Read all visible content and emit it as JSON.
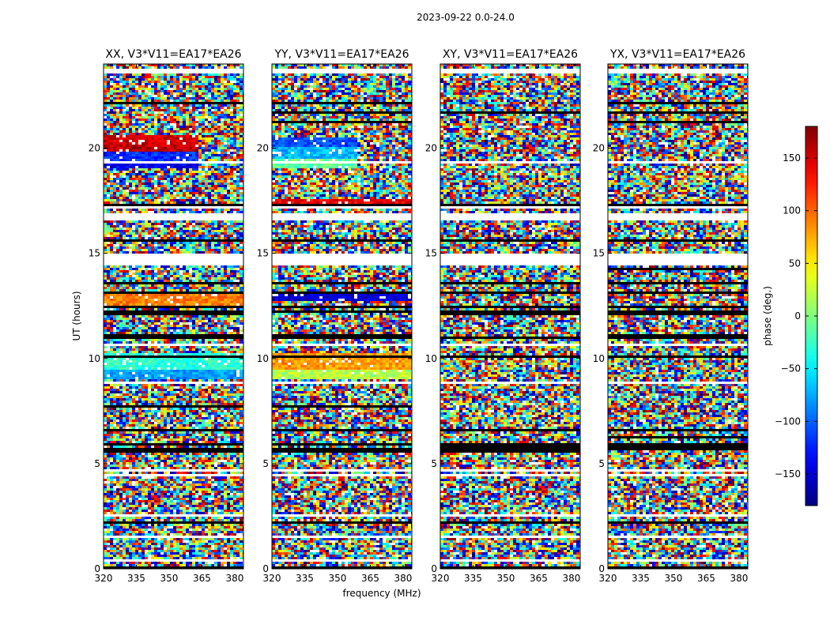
{
  "chart_data": {
    "type": "heatmap",
    "suptitle": "2023-09-22 0.0-24.0",
    "xlabel": "frequency (MHz)",
    "ylabel": "UT (hours)",
    "xlim": [
      320,
      384
    ],
    "ylim": [
      0,
      24
    ],
    "xticks": [
      320,
      335,
      350,
      365,
      380
    ],
    "yticks": [
      0,
      5,
      10,
      15,
      20
    ],
    "colorbar": {
      "label": "phase (deg.)",
      "range": [
        -180,
        180
      ],
      "ticks": [
        -150,
        -100,
        -50,
        0,
        50,
        100,
        150
      ],
      "tick_labels": [
        "−150",
        "−100",
        "−50",
        "0",
        "50",
        "100",
        "150"
      ],
      "colormap": "jet",
      "colors": [
        "#00007f",
        "#0000ff",
        "#007fff",
        "#00ffff",
        "#7fff7f",
        "#ffff00",
        "#ff7f00",
        "#ff0000",
        "#7f0000"
      ]
    },
    "panels": [
      {
        "title": "XX, V3*V11=EA17*EA26",
        "coherent_bands": [
          {
            "t0": 19.0,
            "t1": 19.4,
            "f1": 362,
            "phase": -140
          },
          {
            "t0": 19.4,
            "t1": 19.8,
            "f1": 362,
            "phase": -120
          },
          {
            "t0": 19.8,
            "t1": 20.2,
            "f1": 362,
            "phase": 160
          },
          {
            "t0": 20.2,
            "t1": 20.6,
            "f1": 362,
            "phase": 150
          },
          {
            "t0": 12.5,
            "t1": 13.1,
            "f1": 384,
            "phase": 90
          },
          {
            "t0": 9.0,
            "t1": 9.5,
            "f1": 384,
            "phase": -80
          },
          {
            "t0": 9.5,
            "t1": 10.2,
            "f1": 384,
            "phase": -30
          }
        ]
      },
      {
        "title": "YY, V3*V11=EA17*EA26",
        "coherent_bands": [
          {
            "t0": 19.0,
            "t1": 19.5,
            "f1": 358,
            "phase": -10
          },
          {
            "t0": 19.5,
            "t1": 20.0,
            "f1": 358,
            "phase": -70
          },
          {
            "t0": 20.0,
            "t1": 20.5,
            "f1": 358,
            "phase": -110
          },
          {
            "t0": 17.4,
            "t1": 17.6,
            "f1": 384,
            "phase": 140
          },
          {
            "t0": 12.7,
            "t1": 13.2,
            "f1": 384,
            "phase": -150
          },
          {
            "t0": 9.5,
            "t1": 10.2,
            "f1": 384,
            "phase": 80
          },
          {
            "t0": 9.0,
            "t1": 9.5,
            "f1": 384,
            "phase": 20
          }
        ]
      },
      {
        "title": "XY, V3*V11=EA17*EA26",
        "coherent_bands": []
      },
      {
        "title": "YX, V3*V11=EA17*EA26",
        "coherent_bands": []
      }
    ],
    "flagged_time_ranges": [
      [
        0.35,
        0.5
      ],
      [
        1.45,
        1.6
      ],
      [
        2.45,
        2.55
      ],
      [
        3.55,
        3.65
      ],
      [
        4.45,
        4.55
      ],
      [
        4.6,
        4.7
      ],
      [
        8.75,
        8.85
      ],
      [
        10.55,
        10.65
      ],
      [
        14.4,
        15.0
      ],
      [
        16.6,
        16.85
      ],
      [
        17.1,
        17.2
      ],
      [
        19.3,
        19.4
      ],
      [
        23.05,
        23.15
      ],
      [
        23.5,
        23.75
      ]
    ],
    "grid": false
  }
}
